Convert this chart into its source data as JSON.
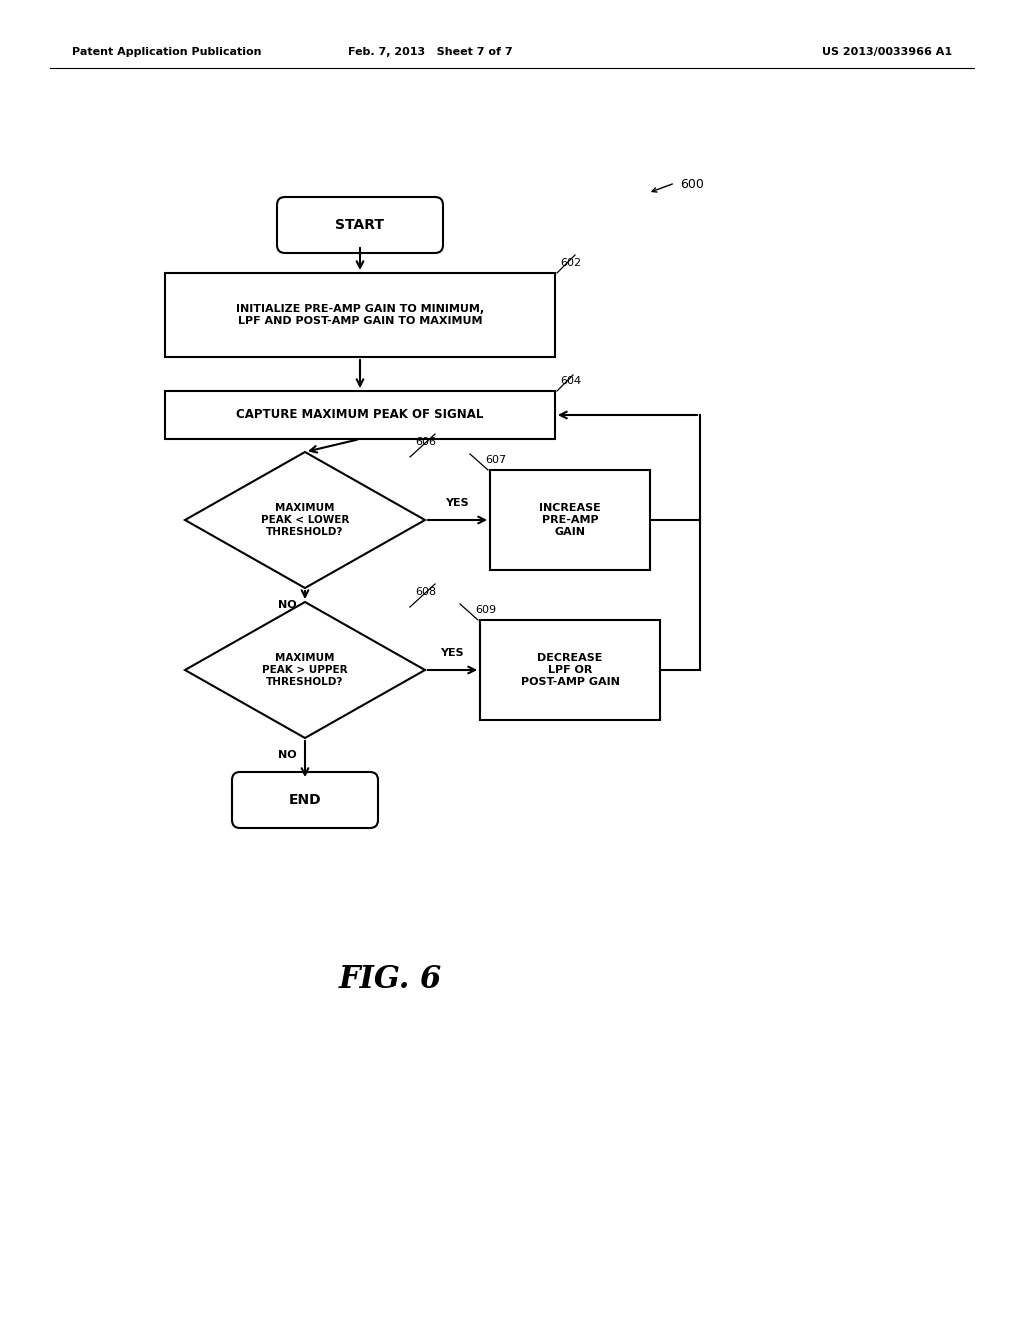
{
  "bg_color": "#ffffff",
  "header_left": "Patent Application Publication",
  "header_center": "Feb. 7, 2013   Sheet 7 of 7",
  "header_right": "US 2013/0033966 A1",
  "fig_label": "FIG. 6",
  "diagram_label": "600"
}
